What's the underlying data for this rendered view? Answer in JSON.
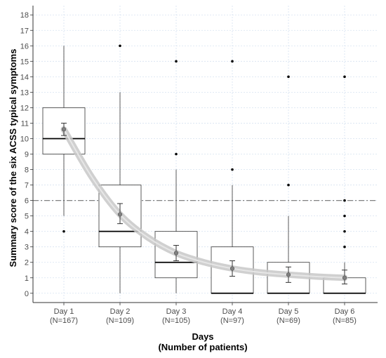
{
  "chart_data": {
    "type": "box",
    "xlabel": "Days",
    "xlabel_sub": "(Number of patients)",
    "ylabel": "Summary score of the six ACSS typical symptoms",
    "ylim": [
      -0.6,
      18.6
    ],
    "y_ticks": [
      0,
      1,
      2,
      3,
      4,
      5,
      6,
      7,
      8,
      9,
      10,
      11,
      12,
      13,
      14,
      15,
      16,
      17,
      18
    ],
    "grid": true,
    "reference_line": {
      "y": 6,
      "style": "dash-dot"
    },
    "categories": [
      {
        "label": "Day 1",
        "n_label": "(N=167)"
      },
      {
        "label": "Day 2",
        "n_label": "(N=109)"
      },
      {
        "label": "Day 3",
        "n_label": "(N=105)"
      },
      {
        "label": "Day 4",
        "n_label": "(N=97)"
      },
      {
        "label": "Day 5",
        "n_label": "(N=69)"
      },
      {
        "label": "Day 6",
        "n_label": "(N=85)"
      }
    ],
    "boxes": [
      {
        "whisker_low": 5,
        "q1": 9,
        "median": 10,
        "q3": 12,
        "whisker_high": 16,
        "outliers": [
          4
        ]
      },
      {
        "whisker_low": 0,
        "q1": 3,
        "median": 4,
        "q3": 7,
        "whisker_high": 13,
        "outliers": [
          16
        ]
      },
      {
        "whisker_low": 0,
        "q1": 1,
        "median": 2,
        "q3": 4,
        "whisker_high": 8,
        "outliers": [
          9,
          15
        ]
      },
      {
        "whisker_low": 0,
        "q1": 0,
        "median": 0,
        "q3": 3,
        "whisker_high": 7,
        "outliers": [
          8,
          15
        ]
      },
      {
        "whisker_low": 0,
        "q1": 0,
        "median": 0,
        "q3": 2,
        "whisker_high": 5,
        "outliers": [
          7,
          14
        ]
      },
      {
        "whisker_low": 0,
        "q1": 0,
        "median": 0,
        "q3": 1,
        "whisker_high": 2,
        "outliers": [
          3,
          4,
          5,
          6,
          14
        ]
      }
    ],
    "means": [
      {
        "mean": 10.6,
        "ci_low": 10.2,
        "ci_high": 11.0
      },
      {
        "mean": 5.1,
        "ci_low": 4.5,
        "ci_high": 5.8
      },
      {
        "mean": 2.6,
        "ci_low": 2.1,
        "ci_high": 3.1
      },
      {
        "mean": 1.6,
        "ci_low": 1.1,
        "ci_high": 2.1
      },
      {
        "mean": 1.2,
        "ci_low": 0.7,
        "ci_high": 1.7
      },
      {
        "mean": 1.0,
        "ci_low": 0.6,
        "ci_high": 1.5
      }
    ],
    "trend": {
      "type": "smooth",
      "points": [
        [
          1,
          10.6
        ],
        [
          1.5,
          7.5
        ],
        [
          2,
          5.1
        ],
        [
          2.5,
          3.6
        ],
        [
          3,
          2.6
        ],
        [
          3.5,
          2.0
        ],
        [
          4,
          1.6
        ],
        [
          4.5,
          1.35
        ],
        [
          5,
          1.2
        ],
        [
          5.5,
          1.08
        ],
        [
          6,
          1.0
        ]
      ]
    },
    "colors": {
      "box_fill": "#ffffff",
      "box_stroke": "#333333",
      "grid": "#d6e2f0",
      "reference_line": "#808080",
      "ribbon": "#c8c8c8",
      "trend_line": "#e6e6e6",
      "mean_point": "#808080",
      "outlier": "#000000"
    }
  }
}
